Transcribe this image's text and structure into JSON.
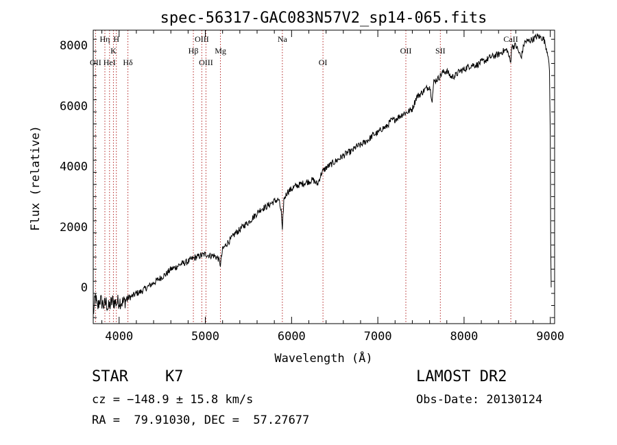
{
  "chart_data": {
    "type": "line",
    "title": "spec-56317-GAC083N57V2_sp14-065.fits",
    "xlabel": "Wavelength (Å)",
    "ylabel": "Flux (relative)",
    "xlim": [
      3700,
      9050
    ],
    "ylim": [
      -1200,
      8500
    ],
    "xticks": [
      4000,
      5000,
      6000,
      7000,
      8000,
      9000
    ],
    "yticks": [
      0,
      2000,
      4000,
      6000,
      8000
    ],
    "grid": false,
    "series": [
      {
        "x": [
          3700,
          3725,
          3750,
          3775,
          3800,
          3825,
          3850,
          3875,
          3900,
          3925,
          3950,
          3975,
          4000,
          4050,
          4100,
          4150,
          4200,
          4250,
          4300,
          4350,
          4400,
          4450,
          4500,
          4550,
          4600,
          4650,
          4700,
          4750,
          4800,
          4850,
          4900,
          4950,
          5000,
          5050,
          5100,
          5150,
          5175,
          5200,
          5250,
          5300,
          5350,
          5400,
          5450,
          5500,
          5550,
          5600,
          5650,
          5700,
          5750,
          5800,
          5850,
          5880,
          5893,
          5900,
          5910,
          5950,
          6000,
          6050,
          6100,
          6150,
          6200,
          6250,
          6300,
          6350,
          6400,
          6450,
          6500,
          6550,
          6600,
          6650,
          6700,
          6750,
          6800,
          6850,
          6900,
          6950,
          7000,
          7050,
          7100,
          7150,
          7200,
          7250,
          7300,
          7350,
          7400,
          7450,
          7500,
          7550,
          7600,
          7630,
          7650,
          7700,
          7750,
          7800,
          7850,
          7900,
          7950,
          8000,
          8050,
          8100,
          8150,
          8200,
          8250,
          8300,
          8350,
          8400,
          8450,
          8500,
          8542,
          8550,
          8600,
          8662,
          8700,
          8750,
          8800,
          8850,
          8900,
          8925,
          8950,
          8975,
          8990,
          9000,
          9005,
          9010
        ],
        "y": [
          -900,
          -300,
          -700,
          -400,
          -500,
          -600,
          -500,
          -700,
          -550,
          -450,
          -500,
          -500,
          -450,
          -500,
          -350,
          -300,
          -200,
          -150,
          -50,
          50,
          150,
          250,
          350,
          450,
          600,
          650,
          750,
          800,
          850,
          950,
          1000,
          1050,
          1100,
          1050,
          1050,
          950,
          750,
          1250,
          1450,
          1600,
          1800,
          1900,
          2050,
          2150,
          2300,
          2450,
          2600,
          2650,
          2750,
          2850,
          2900,
          2500,
          1800,
          2300,
          2900,
          3150,
          3250,
          3350,
          3400,
          3450,
          3500,
          3550,
          3400,
          3800,
          3950,
          4050,
          4150,
          4250,
          4350,
          4450,
          4500,
          4650,
          4700,
          4800,
          4900,
          5050,
          5100,
          5250,
          5300,
          5500,
          5550,
          5650,
          5750,
          5800,
          5900,
          6300,
          6400,
          6550,
          6650,
          6200,
          6800,
          6900,
          7100,
          7150,
          6950,
          7000,
          7150,
          7200,
          7300,
          7350,
          7350,
          7450,
          7500,
          7600,
          7650,
          7700,
          7800,
          7850,
          7400,
          7950,
          8000,
          7600,
          8100,
          8150,
          8200,
          8300,
          8250,
          8200,
          7950,
          7700,
          7100,
          5000,
          1500,
          0
        ]
      }
    ],
    "lines": [
      {
        "label": "OII",
        "wavelength": 3727,
        "row": 3
      },
      {
        "label": "Hη",
        "wavelength": 3835,
        "row": 1
      },
      {
        "label": "HeI",
        "wavelength": 3889,
        "row": 3
      },
      {
        "label": "K",
        "wavelength": 3934,
        "row": 2
      },
      {
        "label": "H",
        "wavelength": 3968,
        "row": 1
      },
      {
        "label": "Hδ",
        "wavelength": 4102,
        "row": 3
      },
      {
        "label": "Hβ",
        "wavelength": 4861,
        "row": 2
      },
      {
        "label": "OIII",
        "wavelength": 4959,
        "row": 1
      },
      {
        "label": "OIII",
        "wavelength": 5007,
        "row": 3
      },
      {
        "label": "Mg",
        "wavelength": 5175,
        "row": 2
      },
      {
        "label": "Na",
        "wavelength": 5893,
        "row": 1
      },
      {
        "label": "OI",
        "wavelength": 6364,
        "row": 3
      },
      {
        "label": "OII",
        "wavelength": 7325,
        "row": 2
      },
      {
        "label": "SII",
        "wavelength": 7725,
        "row": 2
      },
      {
        "label": "CaII",
        "wavelength": 8542,
        "row": 1
      }
    ]
  },
  "info": {
    "object_class": "STAR",
    "subclass": "K7",
    "survey": "LAMOST DR2",
    "cz": "cz = −148.9 ± 15.8 km/s",
    "obs_date": "Obs-Date: 20130124",
    "coords": "RA =  79.91030, DEC =  57.27677"
  },
  "colors": {
    "spectrum": "#000000",
    "line_markers": "#b22222",
    "axes": "#000000"
  }
}
